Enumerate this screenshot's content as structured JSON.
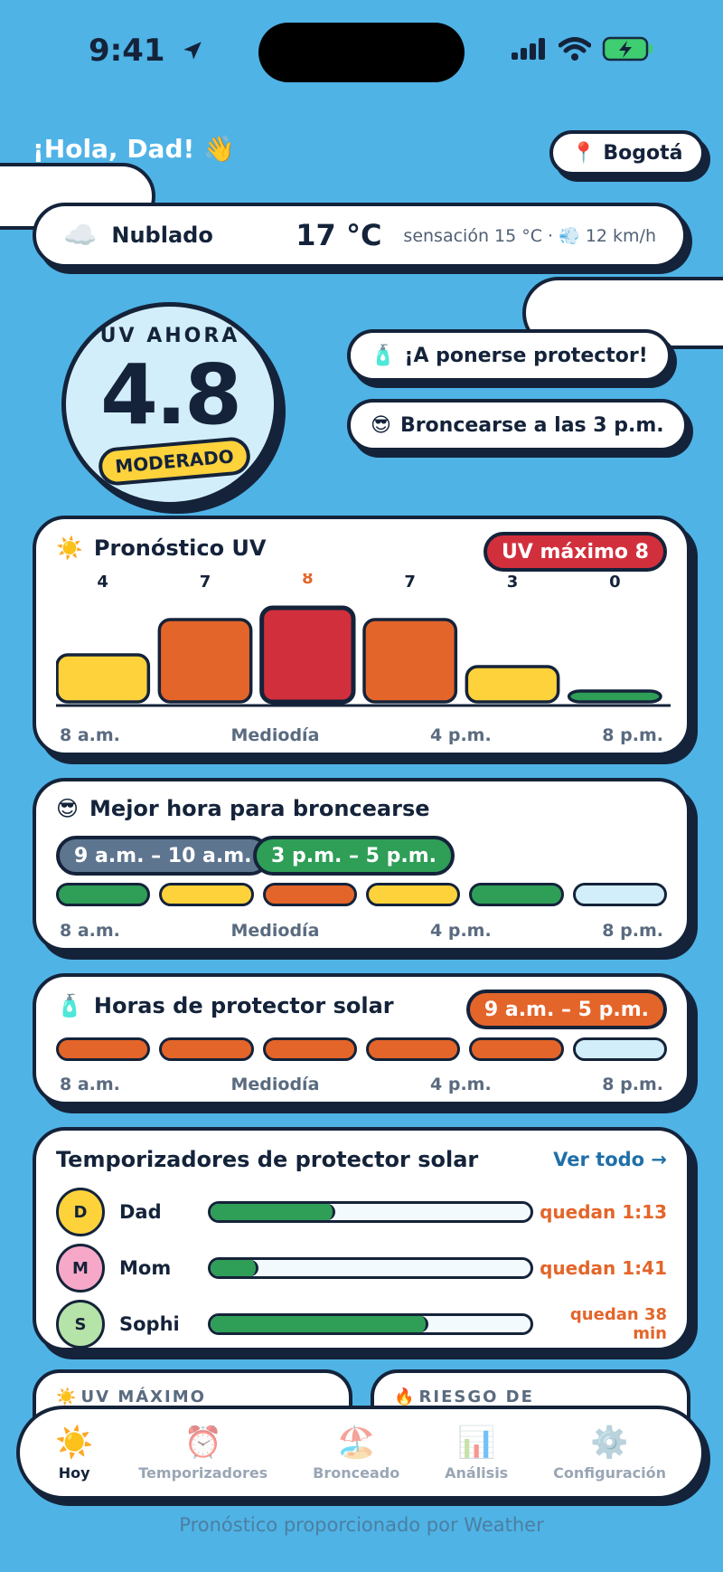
{
  "status": {
    "time": "9:41"
  },
  "greeting": "¡Hola, Dad! 👋",
  "location": "Bogotá",
  "weather": {
    "condition": "Nublado",
    "temperature": "17 °C",
    "feels_like": "sensación 15 °C · 💨 12 km/h"
  },
  "uv_now": {
    "label": "UV AHORA",
    "value": "4.8",
    "level": "MODERADO"
  },
  "tips": [
    {
      "icon": "🧴",
      "text": "¡A ponerse protector!"
    },
    {
      "icon": "😎",
      "text": "Broncearse a las 3 p.m."
    }
  ],
  "axis_labels": [
    "8 a.m.",
    "Mediodía",
    "4 p.m.",
    "8 p.m."
  ],
  "forecast": {
    "icon": "☀️",
    "title": "Pronóstico UV",
    "max_badge": "UV máximo 8",
    "colors": {
      "low": "#2f9e57",
      "moderate": "#fdd23b",
      "high": "#e4652a",
      "very_high": "#d22f3c"
    }
  },
  "chart_data": {
    "type": "bar",
    "values": [
      4,
      7,
      8,
      7,
      3,
      0
    ],
    "xlabel": "",
    "ylabel": ""
  },
  "tanning": {
    "icon": "😎",
    "title": "Mejor hora para broncearse",
    "windows": [
      "9 a.m. – 10 a.m.",
      "3 p.m. – 5 p.m."
    ],
    "segments": [
      "green",
      "yellow",
      "orange",
      "yellow",
      "green",
      "light"
    ]
  },
  "sunscreen": {
    "icon": "🧴",
    "title": "Horas de protector solar",
    "range": "9 a.m. – 5 p.m.",
    "segments": [
      "orange",
      "orange",
      "orange",
      "orange",
      "orange",
      "light"
    ]
  },
  "timers": {
    "title": "Temporizadores de protector solar",
    "see_all": "Ver todo →",
    "people": [
      {
        "initial": "D",
        "name": "Dad",
        "remaining": "quedan 1:13",
        "progress": 0.39,
        "color": "#fdd23b"
      },
      {
        "initial": "M",
        "name": "Mom",
        "remaining": "quedan 1:41",
        "progress": 0.15,
        "color": "#f7a8c8"
      },
      {
        "initial": "S",
        "name": "Sophi",
        "remaining": "quedan 38 min",
        "progress": 0.68,
        "color": "#b6e3a8"
      }
    ]
  },
  "mini_cards": [
    {
      "icon": "☀️",
      "label": "UV MÁXIMO"
    },
    {
      "icon": "🔥",
      "label": "RIESGO DE QUEMADURA"
    }
  ],
  "tabs": [
    {
      "icon": "☀️",
      "label": "Hoy"
    },
    {
      "icon": "⏰",
      "label": "Temporizadores"
    },
    {
      "icon": "🏖️",
      "label": "Bronceado"
    },
    {
      "icon": "📊",
      "label": "Análisis"
    },
    {
      "icon": "⚙️",
      "label": "Configuración"
    }
  ],
  "footer": " Weather"
}
